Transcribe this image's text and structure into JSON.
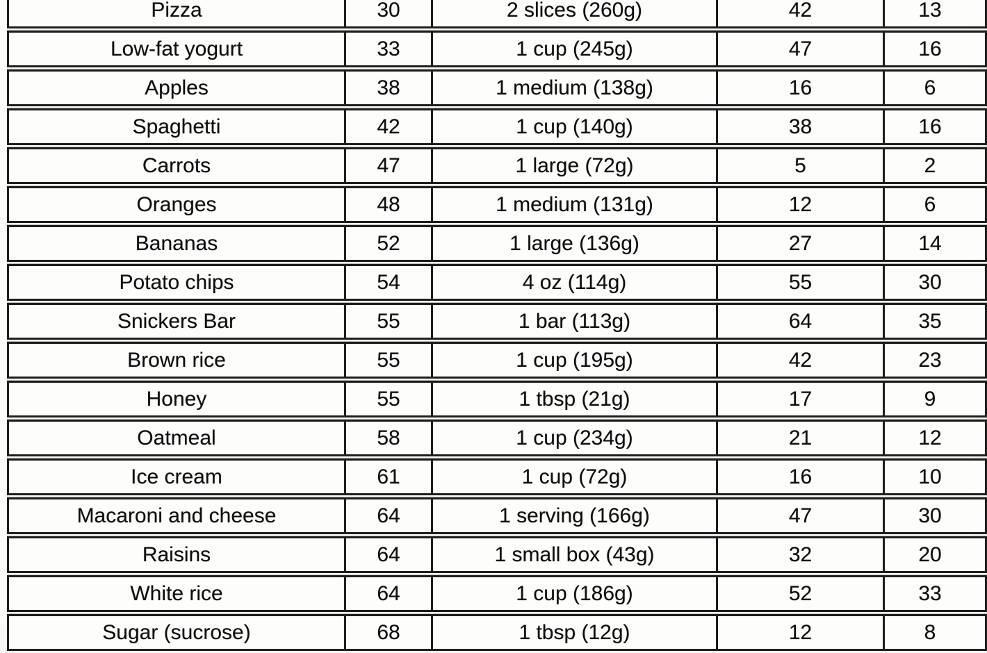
{
  "chart_data": {
    "type": "table",
    "title": "",
    "rows": [
      [
        "Pizza",
        "30",
        "2 slices (260g)",
        "42",
        "13"
      ],
      [
        "Low-fat yogurt",
        "33",
        "1 cup (245g)",
        "47",
        "16"
      ],
      [
        "Apples",
        "38",
        "1 medium (138g)",
        "16",
        "6"
      ],
      [
        "Spaghetti",
        "42",
        "1 cup (140g)",
        "38",
        "16"
      ],
      [
        "Carrots",
        "47",
        "1 large (72g)",
        "5",
        "2"
      ],
      [
        "Oranges",
        "48",
        "1 medium (131g)",
        "12",
        "6"
      ],
      [
        "Bananas",
        "52",
        "1 large (136g)",
        "27",
        "14"
      ],
      [
        "Potato chips",
        "54",
        "4 oz (114g)",
        "55",
        "30"
      ],
      [
        "Snickers Bar",
        "55",
        "1 bar (113g)",
        "64",
        "35"
      ],
      [
        "Brown rice",
        "55",
        "1 cup (195g)",
        "42",
        "23"
      ],
      [
        "Honey",
        "55",
        "1 tbsp (21g)",
        "17",
        "9"
      ],
      [
        "Oatmeal",
        "58",
        "1 cup (234g)",
        "21",
        "12"
      ],
      [
        "Ice cream",
        "61",
        "1 cup (72g)",
        "16",
        "10"
      ],
      [
        "Macaroni and cheese",
        "64",
        "1 serving (166g)",
        "47",
        "30"
      ],
      [
        "Raisins",
        "64",
        "1 small box (43g)",
        "32",
        "20"
      ],
      [
        "White rice",
        "64",
        "1 cup (186g)",
        "52",
        "33"
      ],
      [
        "Sugar (sucrose)",
        "68",
        "1 tbsp (12g)",
        "12",
        "8"
      ]
    ],
    "layout": {
      "first_row_clipped_top": true,
      "last_row_clipped_bottom": true,
      "right_edge_clipped": true,
      "grid": "all-borders",
      "text_align": "center"
    },
    "colors": {
      "border": "#1e1e1e",
      "cell_background": "#fdfdfc",
      "text": "#0e0e0e",
      "page_background": "#fbfcfa"
    }
  }
}
